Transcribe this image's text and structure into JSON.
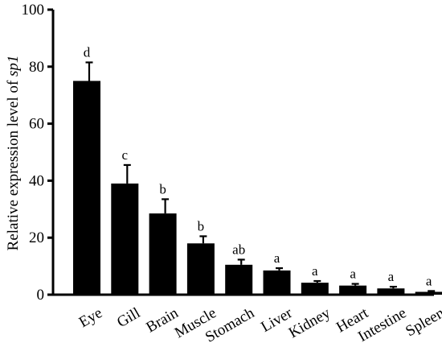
{
  "chart_data": {
    "type": "bar",
    "ylabel_prefix": "Relative expression level of ",
    "ylabel_gene": "sp1",
    "ylim": [
      0,
      100
    ],
    "yticks": [
      0,
      20,
      40,
      60,
      80,
      100
    ],
    "grid": false,
    "categories": [
      "Eye",
      "Gill",
      "Brain",
      "Muscle",
      "Stomach",
      "Liver",
      "Kidney",
      "Heart",
      "Intestine",
      "Spleen"
    ],
    "values": [
      75,
      39,
      28.5,
      18,
      10.5,
      8.5,
      4.2,
      3.2,
      2.2,
      1.0
    ],
    "errors": [
      6.5,
      6.5,
      5.0,
      2.5,
      1.8,
      0.8,
      0.6,
      0.6,
      0.6,
      0.3
    ],
    "significance": [
      "d",
      "c",
      "b",
      "b",
      "ab",
      "a",
      "a",
      "a",
      "a",
      "a"
    ],
    "colors": {
      "bar": "#000000",
      "axis": "#000000"
    }
  }
}
